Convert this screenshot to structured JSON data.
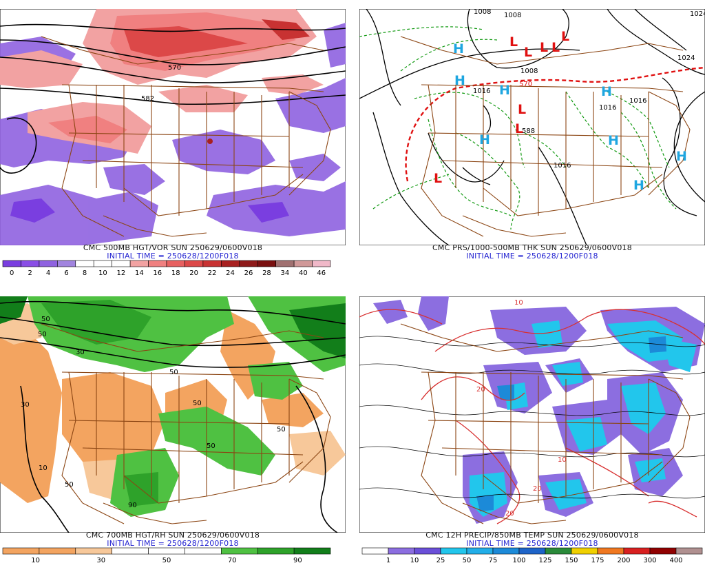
{
  "panels": [
    {
      "id": "p1",
      "title": "CMC 500MB HGT/VOR SUN 250629/0600V018",
      "init": "INITIAL TIME = 250628/1200F018",
      "scale_labels": [
        "0",
        "2",
        "4",
        "6",
        "8",
        "10",
        "12",
        "14",
        "16",
        "18",
        "20",
        "22",
        "24",
        "26",
        "28",
        "34",
        "40",
        "46"
      ],
      "scale_colors": [
        "#7a3ee0",
        "#8a4ee6",
        "#8f62e0",
        "#a184df",
        "#ffffff",
        "#ffffff",
        "#ffffff",
        "#f2a2a2",
        "#f08080",
        "#e76060",
        "#dc4848",
        "#c83232",
        "#a82020",
        "#8e1a1a",
        "#7a1010",
        "#a07070",
        "#d09898",
        "#f0b8c8"
      ],
      "contour_labels": [
        "570",
        "582"
      ]
    },
    {
      "id": "p2",
      "title": "CMC PRS/1000-500MB THK SUN 250629/0600V018",
      "init": "INITIAL TIME = 250628/1200F018",
      "highs": [
        "H",
        "H",
        "H",
        "H",
        "H",
        "H",
        "H",
        "H"
      ],
      "lows": [
        "L",
        "L",
        "L",
        "L",
        "L",
        "L",
        "L",
        "L"
      ],
      "contour_labels": [
        "1008",
        "1008",
        "1024",
        "1024",
        "1016",
        "1016",
        "1016",
        "1016",
        "1008",
        "570",
        "588"
      ]
    },
    {
      "id": "p3",
      "title": "CMC 700MB HGT/RH SUN 250629/0600V018",
      "init": "INITIAL TIME = 250628/1200F018",
      "scale_labels": [
        "10",
        "30",
        "50",
        "70",
        "90"
      ],
      "scale_colors": [
        "#f3a460",
        "#f3a460",
        "#f7c89a",
        "#ffffff",
        "#ffffff",
        "#ffffff",
        "#4fc142",
        "#2ea22a",
        "#127e1a"
      ],
      "contour_labels": [
        "50",
        "50",
        "30",
        "50",
        "50",
        "50",
        "50",
        "50",
        "90",
        "30",
        "10"
      ]
    },
    {
      "id": "p4",
      "title": "CMC 12H PRECIP/850MB TEMP SUN 250629/0600V018",
      "init": "INITIAL TIME = 250628/1200F018",
      "scale_labels": [
        "1",
        "10",
        "25",
        "50",
        "75",
        "100",
        "125",
        "150",
        "175",
        "200",
        "300",
        "400"
      ],
      "scale_colors": [
        "#ffffff",
        "#8c6ee0",
        "#6a4fd8",
        "#22c6ec",
        "#22aee8",
        "#1c8ad8",
        "#1e64c8",
        "#2a8a3a",
        "#f0d000",
        "#f07820",
        "#d82020",
        "#900000",
        "#b09090"
      ],
      "contour_labels": [
        "10",
        "20",
        "20",
        "10",
        "20"
      ]
    }
  ]
}
